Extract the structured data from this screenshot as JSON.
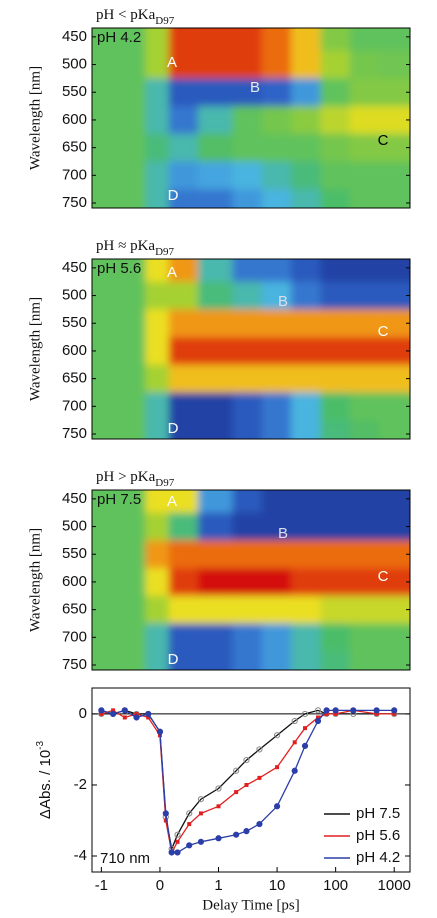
{
  "chart_data": [
    {
      "type": "heatmap",
      "title": [
        "pH < pKa",
        "D97"
      ],
      "label": "pH 4.2",
      "annotations": [
        "A",
        "B",
        "C",
        "D"
      ],
      "ylabel": "Wavelength [nm]",
      "x": [
        -1,
        -0.5,
        0,
        0.3,
        1,
        3,
        10,
        30,
        100,
        300,
        1000
      ],
      "y": [
        450,
        500,
        550,
        600,
        650,
        700,
        750
      ],
      "z": [
        [
          0,
          0,
          1,
          4,
          4,
          4,
          3.5,
          2.5,
          0.5,
          0,
          0
        ],
        [
          0,
          0,
          1,
          4,
          4,
          4,
          3.5,
          2.5,
          1,
          0.3,
          0.2
        ],
        [
          0,
          0,
          -1,
          -3,
          -3,
          -3,
          -2.8,
          -2,
          0,
          0.5,
          0.5
        ],
        [
          0,
          0,
          -1,
          -2.5,
          -1,
          0,
          0.3,
          0.6,
          1.3,
          1.8,
          1.8
        ],
        [
          0,
          0,
          -0.5,
          -1,
          -0.2,
          0,
          0,
          0,
          0.3,
          0.5,
          0.5
        ],
        [
          0,
          0,
          -1,
          -2,
          -1.8,
          -1.5,
          -1,
          -0.5,
          0,
          0,
          0
        ],
        [
          0,
          0,
          -1,
          -2.5,
          -2.5,
          -2,
          -1.5,
          -1,
          -0.3,
          0,
          0
        ]
      ],
      "zlim": [
        -4,
        4.5
      ],
      "colorscale": [
        "#1c2a8c",
        "#2f64c8",
        "#4ab4e6",
        "#48bc6c",
        "#9ccf34",
        "#f0e020",
        "#f08010",
        "#d41010"
      ],
      "xlim": [
        -1.16,
        1860
      ],
      "xscale": "linear-log",
      "ylim": [
        759,
        434
      ],
      "yticks": [
        450,
        500,
        550,
        600,
        650,
        700,
        750
      ]
    },
    {
      "type": "heatmap",
      "title": [
        "pH ≈ pKa",
        "D97"
      ],
      "label": "pH 5.6",
      "annotations": [
        "A",
        "B",
        "C",
        "D"
      ],
      "ylabel": "Wavelength [nm]",
      "x": [
        -1,
        -0.5,
        0,
        0.3,
        1,
        3,
        10,
        30,
        100,
        300,
        1000
      ],
      "y": [
        450,
        500,
        550,
        600,
        650,
        700,
        750
      ],
      "z": [
        [
          0,
          0,
          2,
          3,
          -1,
          -2.5,
          -2.5,
          -3,
          -3.5,
          -3.5,
          -3.5
        ],
        [
          0,
          0,
          1,
          1,
          -0.5,
          -1,
          -1.5,
          -2.5,
          -3,
          -3,
          -3
        ],
        [
          0,
          0,
          2,
          3,
          3,
          3,
          3,
          3,
          3,
          3,
          3
        ],
        [
          0,
          0,
          2,
          4,
          4,
          4,
          4,
          4,
          4,
          4,
          4
        ],
        [
          0,
          0,
          1,
          2.5,
          2.5,
          2.5,
          2.5,
          2.5,
          2.5,
          2.5,
          2.5
        ],
        [
          0,
          0,
          -1,
          -3.5,
          -3.5,
          -3,
          -2.5,
          -1.5,
          -0.3,
          0,
          0
        ],
        [
          0,
          0,
          -1,
          -3.5,
          -3.5,
          -3,
          -2.5,
          -1.5,
          -0.5,
          -0.2,
          0
        ]
      ],
      "zlim": [
        -4,
        4.5
      ],
      "colorscale": [
        "#1c2a8c",
        "#2f64c8",
        "#4ab4e6",
        "#48bc6c",
        "#9ccf34",
        "#f0e020",
        "#f08010",
        "#d41010"
      ],
      "xlim": [
        -1.16,
        1860
      ],
      "xscale": "linear-log",
      "ylim": [
        759,
        434
      ],
      "yticks": [
        450,
        500,
        550,
        600,
        650,
        700,
        750
      ]
    },
    {
      "type": "heatmap",
      "title": [
        "pH > pKa",
        "D97"
      ],
      "label": "pH 7.5",
      "annotations": [
        "A",
        "B",
        "C",
        "D"
      ],
      "ylabel": "Wavelength [nm]",
      "x": [
        -1,
        -0.5,
        0,
        0.3,
        1,
        3,
        10,
        30,
        100,
        300,
        1000
      ],
      "y": [
        450,
        500,
        550,
        600,
        650,
        700,
        750
      ],
      "z": [
        [
          0,
          0,
          2,
          2,
          -2,
          -3,
          -3.5,
          -3.5,
          -3.5,
          -3.5,
          -3.5
        ],
        [
          0,
          0,
          1,
          -0.5,
          -3,
          -3.5,
          -3.5,
          -3.5,
          -3.5,
          -3.5,
          -3.5
        ],
        [
          0,
          0,
          3,
          3.5,
          3.5,
          3.5,
          3.5,
          3.5,
          3.5,
          3.5,
          3.5
        ],
        [
          0,
          0,
          2,
          4,
          4.5,
          4.5,
          4.5,
          4,
          4,
          4,
          4
        ],
        [
          0,
          0,
          1,
          2,
          2,
          2,
          2,
          2,
          1.5,
          1.5,
          1.5
        ],
        [
          0,
          0,
          -1,
          -3,
          -3,
          -2.5,
          -2,
          -1,
          -0.3,
          0,
          0
        ],
        [
          0,
          0,
          -1,
          -3,
          -3,
          -2.5,
          -2,
          -1,
          -0.5,
          0,
          0
        ]
      ],
      "zlim": [
        -4,
        4.5
      ],
      "colorscale": [
        "#1c2a8c",
        "#2f64c8",
        "#4ab4e6",
        "#48bc6c",
        "#9ccf34",
        "#f0e020",
        "#f08010",
        "#d41010"
      ],
      "xlim": [
        -1.16,
        1860
      ],
      "xscale": "linear-log",
      "ylim": [
        759,
        434
      ],
      "yticks": [
        450,
        500,
        550,
        600,
        650,
        700,
        750
      ]
    },
    {
      "type": "line",
      "xlabel": "Delay Time [ps]",
      "ylabel": [
        "ΔAbs. / 10",
        "-3"
      ],
      "annotations": [
        "710 nm"
      ],
      "x": [
        -1,
        -0.8,
        -0.6,
        -0.4,
        -0.2,
        0,
        0.1,
        0.2,
        0.3,
        0.5,
        0.7,
        1,
        2,
        3,
        5,
        10,
        20,
        30,
        50,
        70,
        100,
        200,
        500,
        1000
      ],
      "series": [
        {
          "name": "pH 7.5",
          "color": "#111111",
          "marker": "circle-open",
          "values": [
            0,
            0,
            0.1,
            0,
            0,
            -0.5,
            -2.9,
            -3.8,
            -3.4,
            -2.8,
            -2.4,
            -2.1,
            -1.6,
            -1.3,
            -1.0,
            -0.6,
            -0.2,
            0,
            0.1,
            0,
            0,
            0,
            0,
            0
          ]
        },
        {
          "name": "pH 5.6",
          "color": "#e02020",
          "marker": "square",
          "values": [
            0,
            0.1,
            -0.1,
            0,
            -0.1,
            -0.6,
            -3.0,
            -3.9,
            -3.6,
            -3.1,
            -2.8,
            -2.6,
            -2.2,
            -2.0,
            -1.8,
            -1.5,
            -0.8,
            -0.4,
            -0.1,
            0,
            0,
            0.1,
            0,
            0
          ]
        },
        {
          "name": "pH 4.2",
          "color": "#2c3ea8",
          "marker": "circle",
          "values": [
            0.1,
            0,
            0.1,
            -0.1,
            0,
            -0.5,
            -2.8,
            -3.9,
            -3.9,
            -3.7,
            -3.6,
            -3.5,
            -3.4,
            -3.3,
            -3.1,
            -2.6,
            -1.6,
            -0.9,
            -0.2,
            0.1,
            0.1,
            0.1,
            0.1,
            0.1
          ]
        }
      ],
      "xlim": [
        -1.16,
        1860
      ],
      "xscale": "linear-log",
      "xticks": [
        -1,
        0,
        1,
        10,
        100,
        1000
      ],
      "ylim": [
        -4.45,
        0.73
      ],
      "yticks": [
        0,
        -2,
        -4
      ],
      "zero_line": true,
      "legend": "lower right"
    }
  ]
}
